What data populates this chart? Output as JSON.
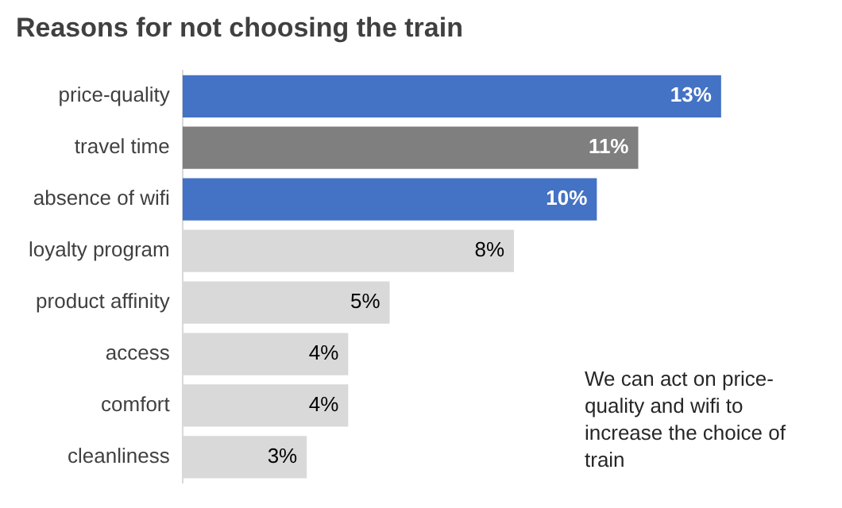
{
  "chart_data": {
    "type": "bar",
    "orientation": "horizontal",
    "title": "Reasons for not choosing the train",
    "categories": [
      "price-quality",
      "travel time",
      "absence of wifi",
      "loyalty program",
      "product affinity",
      "access",
      "comfort",
      "cleanliness"
    ],
    "values": [
      13,
      11,
      10,
      8,
      5,
      4,
      4,
      3
    ],
    "colors": [
      "#4472c4",
      "#7f7f7f",
      "#4472c4",
      "#d9d9d9",
      "#d9d9d9",
      "#d9d9d9",
      "#d9d9d9",
      "#d9d9d9"
    ],
    "value_labels": [
      "13%",
      "11%",
      "10%",
      "8%",
      "5%",
      "4%",
      "4%",
      "3%"
    ],
    "annotations": [
      "We can act on price-quality and wifi to increase the choice of train"
    ]
  }
}
